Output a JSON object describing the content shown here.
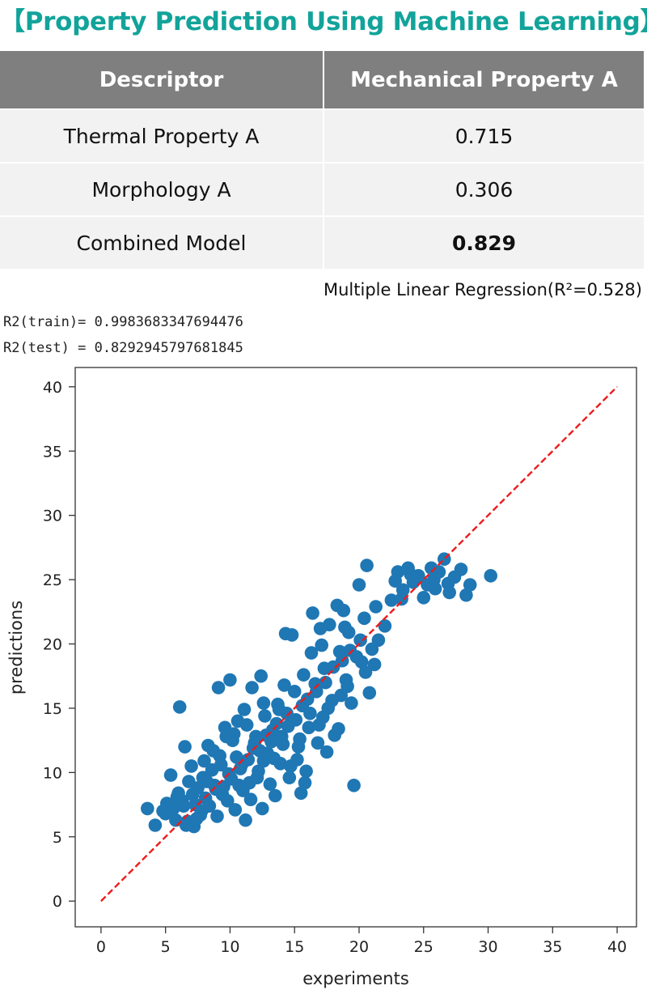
{
  "title": "【Property Prediction Using Machine Learning】",
  "table": {
    "headers": [
      "Descriptor",
      "Mechanical Property A"
    ],
    "rows": [
      {
        "descriptor": "Thermal Property A",
        "value": "0.715"
      },
      {
        "descriptor": "Morphology A",
        "value": "0.306"
      },
      {
        "descriptor": "Combined Model",
        "value": "0.829"
      }
    ]
  },
  "caption": "Multiple Linear Regression(R²=0.528)",
  "console": {
    "train": "R2(train)= 0.9983683347694476",
    "test": "R2(test) = 0.8292945797681845"
  },
  "colors": {
    "title": "#12a39a",
    "points": "#1f77b4",
    "identity_line": "#ee1c1c",
    "header_bg": "#7f7f7f"
  },
  "chart_data": {
    "type": "scatter",
    "xlabel": "experiments",
    "ylabel": "predictions",
    "xlim": [
      -2,
      41.5
    ],
    "ylim": [
      -2,
      41.5
    ],
    "xticks": [
      0,
      5,
      10,
      15,
      20,
      25,
      30,
      35,
      40
    ],
    "yticks": [
      0,
      5,
      10,
      15,
      20,
      25,
      30,
      35,
      40
    ],
    "grid": false,
    "reference_line": {
      "style": "dashed",
      "from": [
        0,
        0
      ],
      "to": [
        40,
        40
      ]
    },
    "points": [
      [
        3.6,
        7.2
      ],
      [
        4.2,
        5.9
      ],
      [
        4.8,
        7.0
      ],
      [
        5.1,
        7.6
      ],
      [
        5.4,
        9.8
      ],
      [
        5.6,
        7.2
      ],
      [
        5.8,
        6.3
      ],
      [
        6.0,
        8.4
      ],
      [
        6.1,
        15.1
      ],
      [
        6.3,
        7.8
      ],
      [
        6.5,
        12.0
      ],
      [
        6.7,
        6.2
      ],
      [
        6.8,
        9.3
      ],
      [
        7.0,
        10.5
      ],
      [
        7.2,
        5.8
      ],
      [
        7.3,
        7.5
      ],
      [
        7.5,
        8.8
      ],
      [
        7.7,
        6.7
      ],
      [
        7.9,
        9.6
      ],
      [
        8.1,
        8.0
      ],
      [
        8.3,
        12.1
      ],
      [
        8.4,
        7.4
      ],
      [
        8.6,
        10.2
      ],
      [
        8.8,
        9.0
      ],
      [
        9.0,
        6.6
      ],
      [
        9.1,
        16.6
      ],
      [
        9.2,
        11.3
      ],
      [
        9.4,
        8.3
      ],
      [
        9.6,
        13.5
      ],
      [
        9.8,
        7.8
      ],
      [
        10.0,
        17.2
      ],
      [
        10.1,
        9.5
      ],
      [
        10.2,
        12.5
      ],
      [
        10.4,
        7.1
      ],
      [
        10.6,
        14.0
      ],
      [
        10.8,
        10.3
      ],
      [
        11.0,
        8.6
      ],
      [
        11.2,
        6.3
      ],
      [
        11.3,
        13.7
      ],
      [
        11.5,
        9.2
      ],
      [
        11.7,
        16.6
      ],
      [
        11.8,
        11.9
      ],
      [
        12.0,
        12.8
      ],
      [
        12.2,
        10.1
      ],
      [
        12.4,
        17.5
      ],
      [
        12.5,
        7.2
      ],
      [
        12.7,
        14.4
      ],
      [
        12.9,
        11.5
      ],
      [
        13.1,
        9.1
      ],
      [
        13.3,
        13.3
      ],
      [
        13.5,
        8.2
      ],
      [
        13.7,
        15.3
      ],
      [
        13.9,
        10.7
      ],
      [
        14.1,
        12.2
      ],
      [
        14.3,
        20.8
      ],
      [
        14.4,
        14.6
      ],
      [
        14.6,
        9.6
      ],
      [
        14.8,
        20.7
      ],
      [
        15.0,
        16.3
      ],
      [
        15.2,
        11.0
      ],
      [
        15.4,
        12.6
      ],
      [
        15.5,
        8.4
      ],
      [
        15.7,
        17.6
      ],
      [
        15.9,
        10.1
      ],
      [
        16.1,
        13.5
      ],
      [
        16.3,
        19.3
      ],
      [
        16.4,
        22.4
      ],
      [
        16.6,
        16.9
      ],
      [
        16.8,
        12.3
      ],
      [
        17.0,
        21.2
      ],
      [
        17.2,
        14.3
      ],
      [
        17.3,
        18.1
      ],
      [
        17.5,
        11.6
      ],
      [
        17.7,
        21.5
      ],
      [
        17.9,
        15.6
      ],
      [
        18.1,
        12.9
      ],
      [
        18.3,
        23.0
      ],
      [
        18.5,
        19.4
      ],
      [
        18.6,
        16.0
      ],
      [
        18.8,
        22.6
      ],
      [
        19.0,
        17.2
      ],
      [
        19.2,
        20.9
      ],
      [
        19.4,
        15.4
      ],
      [
        19.6,
        9.0
      ],
      [
        19.8,
        19.0
      ],
      [
        20.0,
        24.6
      ],
      [
        20.2,
        18.6
      ],
      [
        20.4,
        22.0
      ],
      [
        20.6,
        26.1
      ],
      [
        20.8,
        16.2
      ],
      [
        21.0,
        19.6
      ],
      [
        21.3,
        22.9
      ],
      [
        21.5,
        20.3
      ],
      [
        22.0,
        21.4
      ],
      [
        22.5,
        23.4
      ],
      [
        22.8,
        24.9
      ],
      [
        23.0,
        25.6
      ],
      [
        23.4,
        24.2
      ],
      [
        23.8,
        25.9
      ],
      [
        24.2,
        24.8
      ],
      [
        24.6,
        25.3
      ],
      [
        25.0,
        23.6
      ],
      [
        25.3,
        24.6
      ],
      [
        25.6,
        25.9
      ],
      [
        25.9,
        24.3
      ],
      [
        26.2,
        25.6
      ],
      [
        26.6,
        26.6
      ],
      [
        27.0,
        24.0
      ],
      [
        27.4,
        25.2
      ],
      [
        27.9,
        25.8
      ],
      [
        28.3,
        23.8
      ],
      [
        28.6,
        24.6
      ],
      [
        30.2,
        25.3
      ],
      [
        5.0,
        6.8
      ],
      [
        5.9,
        8.1
      ],
      [
        6.4,
        7.4
      ],
      [
        7.1,
        8.3
      ],
      [
        7.8,
        7.0
      ],
      [
        8.2,
        9.3
      ],
      [
        8.9,
        8.7
      ],
      [
        9.3,
        10.6
      ],
      [
        9.9,
        9.9
      ],
      [
        10.5,
        11.2
      ],
      [
        10.9,
        10.6
      ],
      [
        11.4,
        11.0
      ],
      [
        11.9,
        12.3
      ],
      [
        12.3,
        11.7
      ],
      [
        12.8,
        12.9
      ],
      [
        13.2,
        12.4
      ],
      [
        13.6,
        13.8
      ],
      [
        14.0,
        12.8
      ],
      [
        14.5,
        13.6
      ],
      [
        15.1,
        14.1
      ],
      [
        15.6,
        15.2
      ],
      [
        16.0,
        15.7
      ],
      [
        16.7,
        16.3
      ],
      [
        17.4,
        17.0
      ],
      [
        18.0,
        18.2
      ],
      [
        18.7,
        18.7
      ],
      [
        19.3,
        19.5
      ],
      [
        20.1,
        20.3
      ],
      [
        6.6,
        5.9
      ],
      [
        7.4,
        6.4
      ],
      [
        8.0,
        10.9
      ],
      [
        8.7,
        11.7
      ],
      [
        9.5,
        8.9
      ],
      [
        10.3,
        13.0
      ],
      [
        11.1,
        14.9
      ],
      [
        11.6,
        7.9
      ],
      [
        12.1,
        9.6
      ],
      [
        12.6,
        15.4
      ],
      [
        13.4,
        11.1
      ],
      [
        14.2,
        16.8
      ],
      [
        14.7,
        10.5
      ],
      [
        15.3,
        12.0
      ],
      [
        16.2,
        14.6
      ],
      [
        16.9,
        13.7
      ],
      [
        17.6,
        15.0
      ],
      [
        18.4,
        13.4
      ],
      [
        19.1,
        16.7
      ],
      [
        20.5,
        17.8
      ],
      [
        21.2,
        18.4
      ],
      [
        9.7,
        12.8
      ],
      [
        10.7,
        9.0
      ],
      [
        12.6,
        10.9
      ],
      [
        13.8,
        14.9
      ],
      [
        15.8,
        9.2
      ],
      [
        17.1,
        19.9
      ],
      [
        18.9,
        21.3
      ],
      [
        23.3,
        23.5
      ],
      [
        24.0,
        25.4
      ],
      [
        25.8,
        25.0
      ],
      [
        26.9,
        24.7
      ]
    ]
  }
}
